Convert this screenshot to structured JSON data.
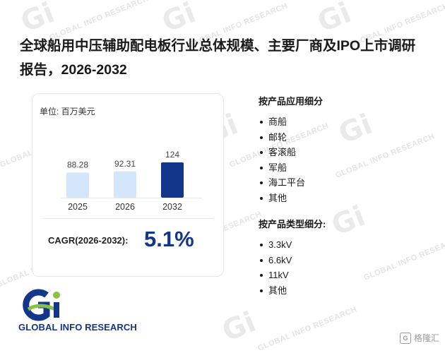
{
  "title": "全球船用中压辅助配电板行业总体规模、主要厂商及IPO上市调研报告，2026-2032",
  "card": {
    "unit_label": "单位: 百万美元",
    "cagr_label": "CAGR(2026-2032):",
    "cagr_value": "5.1%"
  },
  "chart_data": {
    "type": "bar",
    "categories": [
      "2025",
      "2026",
      "2032"
    ],
    "values": [
      88.28,
      92.31,
      124
    ],
    "value_labels": [
      "88.28",
      "92.31",
      "124"
    ],
    "title": "",
    "ylabel": "单位: 百万美元",
    "ylim": [
      0,
      124
    ],
    "bar_colors": [
      "#d4e6fb",
      "#d4e6fb",
      "#13358a"
    ],
    "grid": false
  },
  "segments": {
    "application": {
      "title": "按产品应用细分",
      "items": [
        "商船",
        "邮轮",
        "客滚船",
        "军船",
        "海工平台",
        "其他"
      ]
    },
    "type": {
      "title": "按产品类型细分:",
      "items": [
        "3.3kV",
        "6.6kV",
        "11kV",
        "其他"
      ]
    }
  },
  "logo": {
    "mark": "Gi",
    "text": "GLOBAL INFO RESEARCH"
  },
  "badge": {
    "text": "格隆汇",
    "icon": "g-square-icon"
  },
  "watermark_text": "GLOBAL INFO RESEARCH",
  "colors": {
    "brand_navy": "#13358a",
    "brand_green": "#86c440",
    "bar_light": "#d4e6fb"
  }
}
